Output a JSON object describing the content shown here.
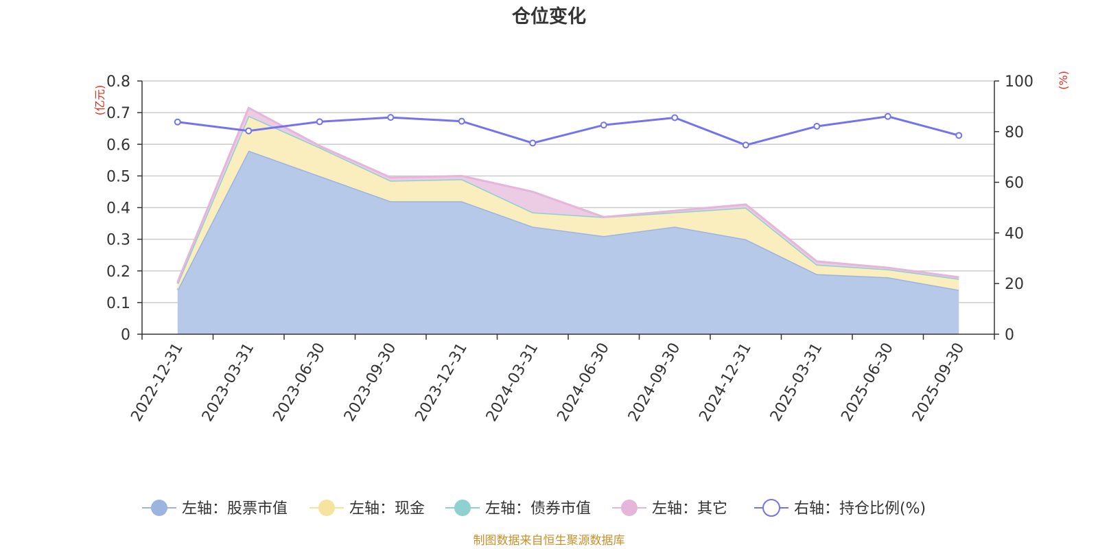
{
  "chart_data": {
    "type": "area",
    "title": "仓位变化",
    "categories": [
      "2022-12-31",
      "2023-03-31",
      "2023-06-30",
      "2023-09-30",
      "2023-12-31",
      "2024-03-31",
      "2024-06-30",
      "2024-09-30",
      "2024-12-31",
      "2025-03-31",
      "2025-06-30",
      "2025-09-30"
    ],
    "left_axis": {
      "unit_label": "(亿元)",
      "ylim": [
        0,
        0.8
      ],
      "ticks": [
        "0",
        "0.1",
        "0.2",
        "0.3",
        "0.4",
        "0.5",
        "0.6",
        "0.7",
        "0.8"
      ]
    },
    "right_axis": {
      "unit_label": "(%)",
      "ylim": [
        0,
        100
      ],
      "ticks": [
        "0",
        "20",
        "40",
        "60",
        "80",
        "100"
      ]
    },
    "series": [
      {
        "name": "左轴：股票市值",
        "axis": "left",
        "kind": "area",
        "color": "#9db4df",
        "fill": "#b6c9e8",
        "values": [
          0.14,
          0.58,
          0.5,
          0.42,
          0.42,
          0.34,
          0.31,
          0.34,
          0.3,
          0.19,
          0.18,
          0.14
        ]
      },
      {
        "name": "左轴：现金",
        "axis": "left",
        "kind": "area",
        "color": "#f6e3a0",
        "fill": "#faedbe",
        "values": [
          0.02,
          0.11,
          0.09,
          0.065,
          0.07,
          0.045,
          0.06,
          0.045,
          0.1,
          0.03,
          0.025,
          0.035
        ]
      },
      {
        "name": "左轴：债券市值",
        "axis": "left",
        "kind": "area",
        "color": "#8fd0d0",
        "fill": "#a8dada",
        "values": [
          0,
          0,
          0,
          0,
          0,
          0,
          0,
          0,
          0,
          0,
          0,
          0
        ]
      },
      {
        "name": "左轴：其它",
        "axis": "left",
        "kind": "area",
        "color": "#e5b6d9",
        "fill": "#eccbe4",
        "values": [
          0.005,
          0.025,
          0.005,
          0.01,
          0.01,
          0.065,
          0.0,
          0.005,
          0.01,
          0.01,
          0.005,
          0.005
        ]
      },
      {
        "name": "右轴：持仓比例(%)",
        "axis": "right",
        "kind": "line",
        "color": "#7373ef",
        "values": [
          83.8,
          80.3,
          83.9,
          85.6,
          84.1,
          75.5,
          82.6,
          85.5,
          74.7,
          82.1,
          86.0,
          78.5
        ]
      }
    ],
    "legend_position": "bottom",
    "grid": true
  },
  "axis_label_color": "#e8291b",
  "footer_color": "#c8902a",
  "footer_text": "制图数据来自恒生聚源数据库"
}
